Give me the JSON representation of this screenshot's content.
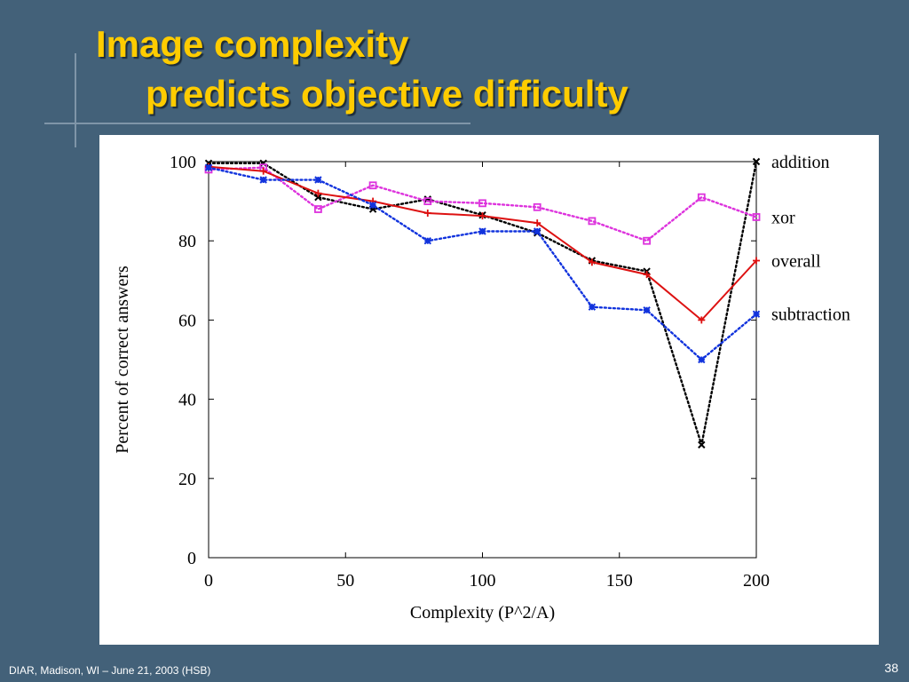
{
  "slide": {
    "title_line1": "Image complexity",
    "title_line2": "predicts objective difficulty",
    "footer": "DIAR, Madison, WI – June 21, 2003 (HSB)",
    "page_number": "38",
    "title_color": "#FFCC00",
    "background_color": "#436179"
  },
  "chart_data": {
    "type": "line",
    "xlabel": "Complexity (P^2/A)",
    "ylabel": "Percent of correct answers",
    "xlim": [
      0,
      200
    ],
    "ylim": [
      0,
      100
    ],
    "xticks": [
      "0",
      "50",
      "100",
      "150",
      "200"
    ],
    "yticks": [
      "0",
      "20",
      "40",
      "60",
      "80",
      "100"
    ],
    "grid": false,
    "legend": "right (series names at line ends)",
    "series": [
      {
        "name": "addition",
        "color": "#000000",
        "style": "dotted",
        "marker": "x",
        "x": [
          0,
          20,
          40,
          60,
          80,
          100,
          120,
          140,
          160,
          180,
          200
        ],
        "y": [
          99.6,
          99.6,
          91,
          88,
          90.5,
          86.5,
          82,
          75,
          72.3,
          28.5,
          100
        ]
      },
      {
        "name": "xor",
        "color": "#DD33DD",
        "style": "dotted",
        "marker": "square",
        "x": [
          0,
          20,
          40,
          60,
          80,
          100,
          120,
          140,
          160,
          180,
          200
        ],
        "y": [
          98,
          98.5,
          88,
          94,
          90,
          89.5,
          88.5,
          85,
          80,
          91,
          86
        ]
      },
      {
        "name": "overall",
        "color": "#DD1111",
        "style": "solid",
        "marker": "plus",
        "x": [
          0,
          20,
          40,
          60,
          80,
          100,
          120,
          140,
          160,
          180,
          200
        ],
        "y": [
          98.7,
          97.6,
          92,
          90,
          87,
          86.3,
          84.5,
          74.6,
          71.5,
          60,
          75
        ]
      },
      {
        "name": "subtraction",
        "color": "#1133DD",
        "style": "dotted",
        "marker": "star",
        "x": [
          0,
          20,
          40,
          60,
          80,
          100,
          120,
          140,
          160,
          180,
          200
        ],
        "y": [
          98.5,
          95.4,
          95.4,
          89,
          80,
          82.4,
          82.4,
          63.3,
          62.5,
          50,
          61.5
        ]
      }
    ]
  }
}
